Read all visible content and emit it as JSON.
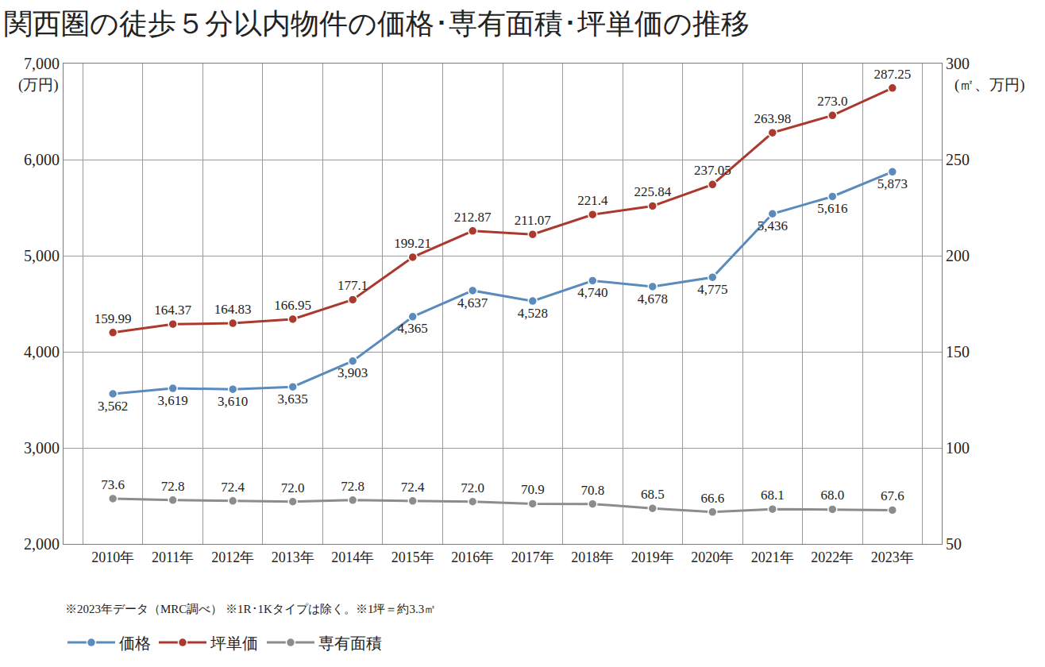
{
  "chart_data": {
    "type": "line",
    "title": "関西圏の徒歩５分以内物件の価格･専有面積･坪単価の推移",
    "ylabel": "(万円)",
    "y2label": "(㎡、万円)",
    "footnote": "※2023年データ（MRC調べ） ※1R･1Kタイプは除く。※1坪＝約3.3㎡",
    "categories": [
      "2010年",
      "2011年",
      "2012年",
      "2013年",
      "2014年",
      "2015年",
      "2016年",
      "2017年",
      "2018年",
      "2019年",
      "2020年",
      "2021年",
      "2022年",
      "2023年"
    ],
    "series": [
      {
        "name": "価格",
        "color": "#5b8bbd",
        "axis": "y",
        "values": [
          3562,
          3619,
          3610,
          3635,
          3903,
          4365,
          4637,
          4528,
          4740,
          4678,
          4775,
          5436,
          5616,
          5873
        ],
        "value_labels": [
          "3,562",
          "3,619",
          "3,610",
          "3,635",
          "3,903",
          "4,365",
          "4,637",
          "4,528",
          "4,740",
          "4,678",
          "4,775",
          "5,436",
          "5,616",
          "5,873"
        ]
      },
      {
        "name": "坪単価",
        "color": "#aa3a2e",
        "axis": "y2",
        "values": [
          159.99,
          164.37,
          164.83,
          166.95,
          177.1,
          199.21,
          212.87,
          211.07,
          221.4,
          225.84,
          237.05,
          263.98,
          273.0,
          287.25
        ],
        "value_labels": [
          "159.99",
          "164.37",
          "164.83",
          "166.95",
          "177.1",
          "199.21",
          "212.87",
          "211.07",
          "221.4",
          "225.84",
          "237.05",
          "263.98",
          "273.0",
          "287.25"
        ]
      },
      {
        "name": "専有面積",
        "color": "#8c8c8c",
        "axis": "y2",
        "values": [
          73.6,
          72.8,
          72.4,
          72.0,
          72.8,
          72.4,
          72.0,
          70.9,
          70.8,
          68.5,
          66.6,
          68.1,
          68.0,
          67.6
        ],
        "value_labels": [
          "73.6",
          "72.8",
          "72.4",
          "72.0",
          "72.8",
          "72.4",
          "72.0",
          "70.9",
          "70.8",
          "68.5",
          "66.6",
          "68.1",
          "68.0",
          "67.6"
        ]
      }
    ],
    "ylim": [
      2000,
      7000
    ],
    "yticks": [
      {
        "value": 2000,
        "label": "2,000"
      },
      {
        "value": 3000,
        "label": "3,000"
      },
      {
        "value": 4000,
        "label": "4,000"
      },
      {
        "value": 5000,
        "label": "5,000"
      },
      {
        "value": 6000,
        "label": "6,000"
      },
      {
        "value": 7000,
        "label": "7,000"
      }
    ],
    "y2lim": [
      50,
      300
    ],
    "y2ticks": [
      50,
      100,
      150,
      200,
      250,
      300
    ],
    "grid": true,
    "legend": "bottom",
    "data_labels": true,
    "marker": "circle"
  }
}
